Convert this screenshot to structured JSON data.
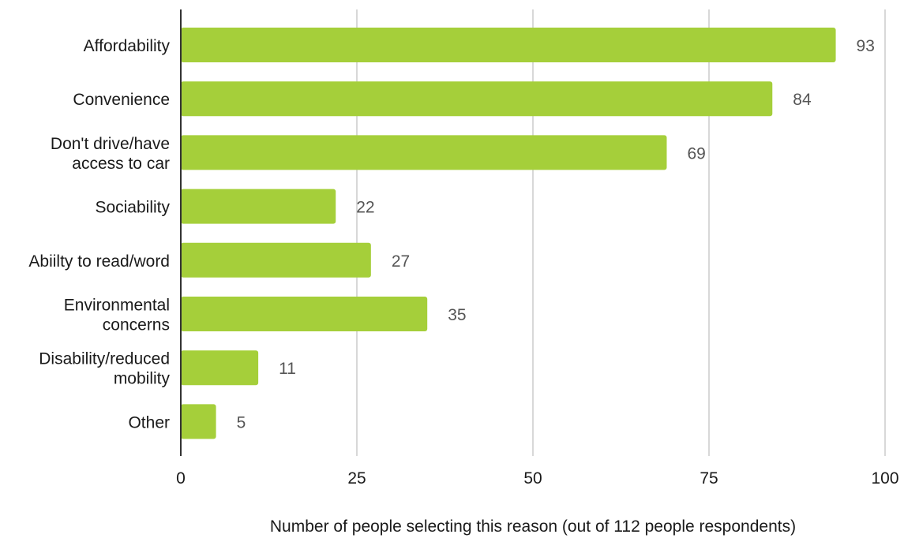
{
  "chart_data": {
    "type": "bar",
    "orientation": "horizontal",
    "title": "",
    "xlabel": "Number of people selecting this reason (out of 112 people respondents)",
    "ylabel": "",
    "categories": [
      "Affordability",
      "Convenience",
      "Don't drive/have access to car",
      "Sociability",
      "Abiilty to read/word",
      "Environmental concerns",
      "Disability/reduced mobility",
      "Other"
    ],
    "category_lines": [
      [
        "Affordability"
      ],
      [
        "Convenience"
      ],
      [
        "Don't drive/have",
        "access to car"
      ],
      [
        "Sociability"
      ],
      [
        "Abiilty to read/word"
      ],
      [
        "Environmental",
        "concerns"
      ],
      [
        "Disability/reduced",
        "mobility"
      ],
      [
        "Other"
      ]
    ],
    "values": [
      93,
      84,
      69,
      22,
      27,
      35,
      11,
      5
    ],
    "xlim": [
      0,
      100
    ],
    "xticks": [
      0,
      25,
      50,
      75,
      100
    ],
    "grid": true,
    "legend": "none",
    "data_labels": true,
    "bar_color": "#a5cf3a",
    "grid_color": "#cccccc",
    "axis_color": "#333333"
  }
}
